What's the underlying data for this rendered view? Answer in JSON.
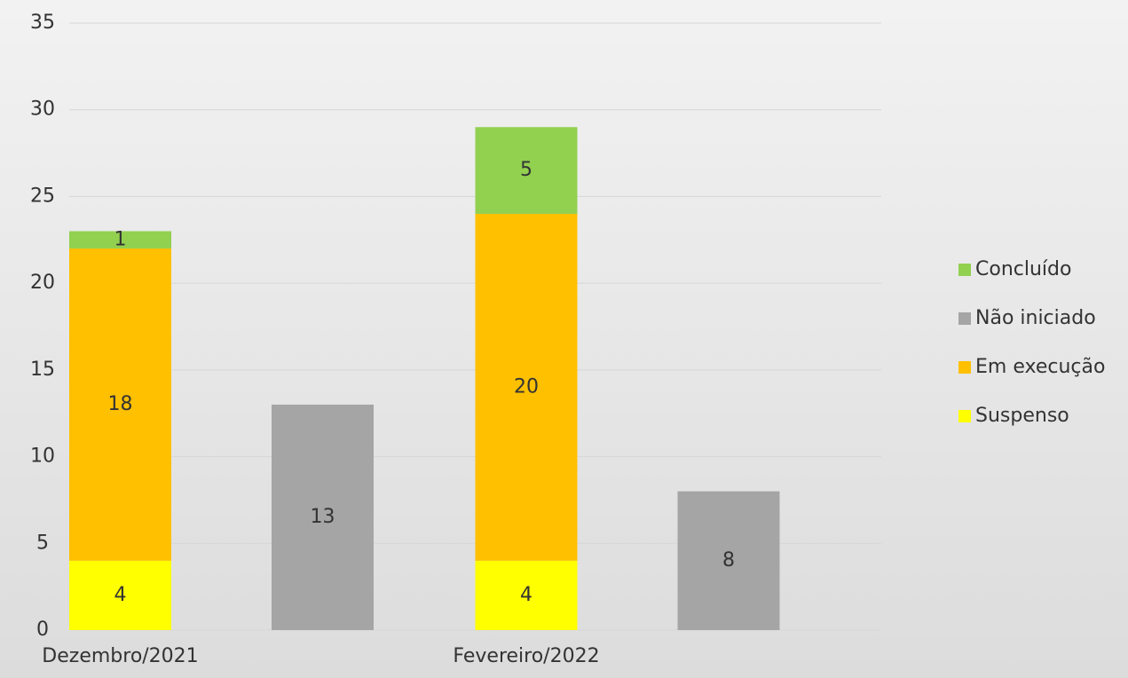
{
  "chart_data": {
    "type": "bar",
    "stacked": true,
    "categories": [
      "Dezembro/2021",
      "Fevereiro/2022"
    ],
    "series": [
      {
        "name": "Concluído",
        "color": "#92d050",
        "stack": 0,
        "values": [
          1,
          5
        ]
      },
      {
        "name": "Não iniciado",
        "color": "#a5a5a5",
        "stack": 1,
        "values": [
          13,
          8
        ]
      },
      {
        "name": "Em execução",
        "color": "#ffc000",
        "stack": 0,
        "values": [
          18,
          20
        ]
      },
      {
        "name": "Suspenso",
        "color": "#ffff00",
        "stack": 0,
        "values": [
          4,
          4
        ]
      }
    ],
    "ylim": [
      0,
      35
    ],
    "yticks": [
      0,
      5,
      10,
      15,
      20,
      25,
      30,
      35
    ],
    "grid": true,
    "legend": "right"
  }
}
